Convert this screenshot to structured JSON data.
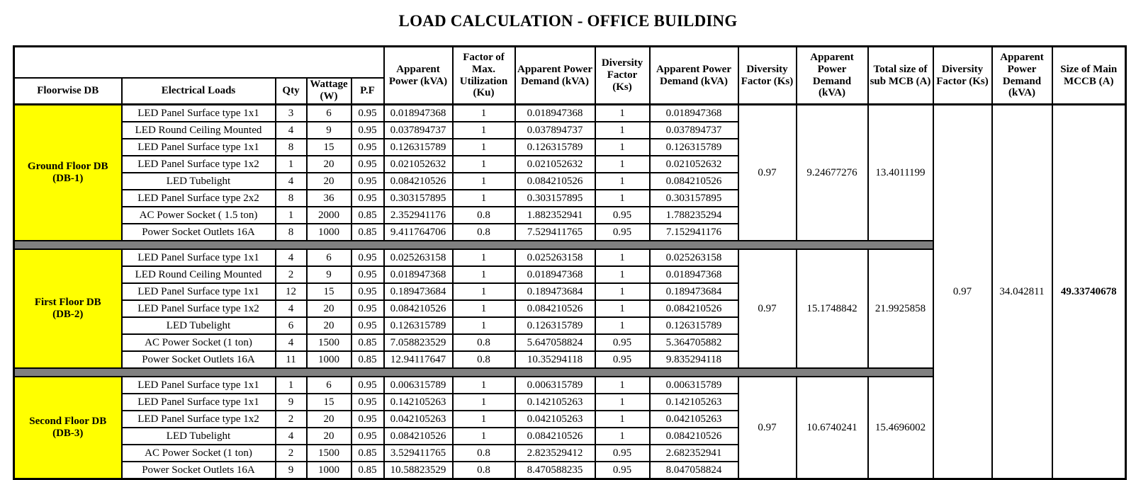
{
  "page_title": "LOAD CALCULATION - OFFICE BUILDING",
  "colors": {
    "floor_cell_bg": "#FFFF00",
    "separator_bg": "#808080",
    "grid_border": "#000000",
    "text": "#000000"
  },
  "table": {
    "corner_blank": "",
    "span_headers": [
      "Apparent Power (kVA)",
      "Factor of Max. Utilization (Ku)",
      "Apparent Power Demand (kVA)",
      "Diversity Factor (Ks)",
      "Apparent Power Demand (kVA)",
      "Diversity Factor (Ks)",
      "Apparent Power Demand (kVA)",
      "Total size of sub MCB (A)",
      "Diversity Factor (Ks)",
      "Apparent Power Demand (kVA)",
      "Size of Main MCCB (A)"
    ],
    "base_headers": [
      "Floorwise DB",
      "Electrical Loads",
      "Qty",
      "Wattage (W)",
      "P.F"
    ],
    "blocks": [
      {
        "floor_name": "Ground Floor DB",
        "floor_code": "(DB-1)",
        "diversity_factor": "0.97",
        "apparent_power_demand": "9.24677276",
        "sub_mcb_size": "13.4011199",
        "rows": [
          [
            "LED Panel Surface type 1x1",
            "3",
            "6",
            "0.95",
            "0.018947368",
            "1",
            "0.018947368",
            "1",
            "0.018947368"
          ],
          [
            "LED Round Ceiling Mounted",
            "4",
            "9",
            "0.95",
            "0.037894737",
            "1",
            "0.037894737",
            "1",
            "0.037894737"
          ],
          [
            "LED Panel Surface type 1x1",
            "8",
            "15",
            "0.95",
            "0.126315789",
            "1",
            "0.126315789",
            "1",
            "0.126315789"
          ],
          [
            "LED Panel Surface type 1x2",
            "1",
            "20",
            "0.95",
            "0.021052632",
            "1",
            "0.021052632",
            "1",
            "0.021052632"
          ],
          [
            "LED Tubelight",
            "4",
            "20",
            "0.95",
            "0.084210526",
            "1",
            "0.084210526",
            "1",
            "0.084210526"
          ],
          [
            "LED Panel Surface type 2x2",
            "8",
            "36",
            "0.95",
            "0.303157895",
            "1",
            "0.303157895",
            "1",
            "0.303157895"
          ],
          [
            "AC Power Socket ( 1.5 ton)",
            "1",
            "2000",
            "0.85",
            "2.352941176",
            "0.8",
            "1.882352941",
            "0.95",
            "1.788235294"
          ],
          [
            "Power Socket Outlets 16A",
            "8",
            "1000",
            "0.85",
            "9.411764706",
            "0.8",
            "7.529411765",
            "0.95",
            "7.152941176"
          ]
        ]
      },
      {
        "floor_name": "First Floor DB",
        "floor_code": "(DB-2)",
        "diversity_factor": "0.97",
        "apparent_power_demand": "15.1748842",
        "sub_mcb_size": "21.9925858",
        "rows": [
          [
            "LED Panel Surface type 1x1",
            "4",
            "6",
            "0.95",
            "0.025263158",
            "1",
            "0.025263158",
            "1",
            "0.025263158"
          ],
          [
            "LED Round Ceiling Mounted",
            "2",
            "9",
            "0.95",
            "0.018947368",
            "1",
            "0.018947368",
            "1",
            "0.018947368"
          ],
          [
            "LED Panel Surface type 1x1",
            "12",
            "15",
            "0.95",
            "0.189473684",
            "1",
            "0.189473684",
            "1",
            "0.189473684"
          ],
          [
            "LED Panel Surface type 1x2",
            "4",
            "20",
            "0.95",
            "0.084210526",
            "1",
            "0.084210526",
            "1",
            "0.084210526"
          ],
          [
            "LED Tubelight",
            "6",
            "20",
            "0.95",
            "0.126315789",
            "1",
            "0.126315789",
            "1",
            "0.126315789"
          ],
          [
            "AC Power Socket (1 ton)",
            "4",
            "1500",
            "0.85",
            "7.058823529",
            "0.8",
            "5.647058824",
            "0.95",
            "5.364705882"
          ],
          [
            "Power Socket Outlets 16A",
            "11",
            "1000",
            "0.85",
            "12.94117647",
            "0.8",
            "10.35294118",
            "0.95",
            "9.835294118"
          ]
        ]
      },
      {
        "floor_name": "Second Floor DB",
        "floor_code": "(DB-3)",
        "diversity_factor": "0.97",
        "apparent_power_demand": "10.6740241",
        "sub_mcb_size": "15.4696002",
        "rows": [
          [
            "LED Panel Surface type 1x1",
            "1",
            "6",
            "0.95",
            "0.006315789",
            "1",
            "0.006315789",
            "1",
            "0.006315789"
          ],
          [
            "LED Panel Surface type 1x1",
            "9",
            "15",
            "0.95",
            "0.142105263",
            "1",
            "0.142105263",
            "1",
            "0.142105263"
          ],
          [
            "LED Panel Surface type 1x2",
            "2",
            "20",
            "0.95",
            "0.042105263",
            "1",
            "0.042105263",
            "1",
            "0.042105263"
          ],
          [
            "LED Tubelight",
            "4",
            "20",
            "0.95",
            "0.084210526",
            "1",
            "0.084210526",
            "1",
            "0.084210526"
          ],
          [
            "AC Power Socket (1 ton)",
            "2",
            "1500",
            "0.85",
            "3.529411765",
            "0.8",
            "2.823529412",
            "0.95",
            "2.682352941"
          ],
          [
            "Power Socket Outlets 16A",
            "9",
            "1000",
            "0.85",
            "10.58823529",
            "0.8",
            "8.470588235",
            "0.95",
            "8.047058824"
          ]
        ]
      }
    ],
    "overall": {
      "diversity_factor": "0.97",
      "apparent_power_demand": "34.042811",
      "main_mccb_size": "49.33740678"
    }
  }
}
